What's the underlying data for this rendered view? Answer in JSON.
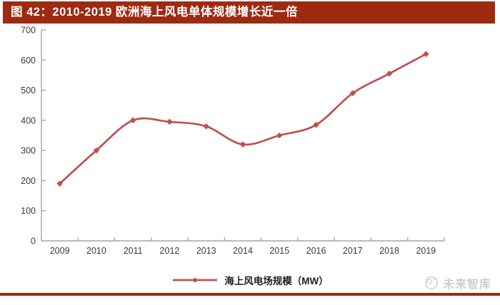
{
  "header": {
    "title": "图 42：2010-2019 欧洲海上风电单体规模增长近一倍"
  },
  "chart_data": {
    "type": "line",
    "title": "",
    "xlabel": "",
    "ylabel": "",
    "categories": [
      "2009",
      "2010",
      "2011",
      "2012",
      "2013",
      "2014",
      "2015",
      "2016",
      "2017",
      "2018",
      "2019"
    ],
    "series": [
      {
        "name": "海上风电场规模（MW）",
        "values": [
          190,
          300,
          400,
          395,
          380,
          320,
          350,
          385,
          490,
          555,
          620
        ],
        "color": "#C0504D",
        "marker": "diamond"
      }
    ],
    "ylim": [
      0,
      700
    ],
    "ytick_interval": 100,
    "grid": false,
    "legend_position": "bottom"
  },
  "legend": {
    "label": "海上风电场规模（MW）"
  },
  "footer": {
    "brand": "未来智库"
  },
  "colors": {
    "header_bg": "#9E2A12",
    "series_line": "#C0504D",
    "axis": "#A6A6A6",
    "tick_label": "#3A3A3A",
    "legend_text": "#1F1F1F",
    "brand_text": "#CDCDCD",
    "bottom_rule": "#9E2A12"
  }
}
